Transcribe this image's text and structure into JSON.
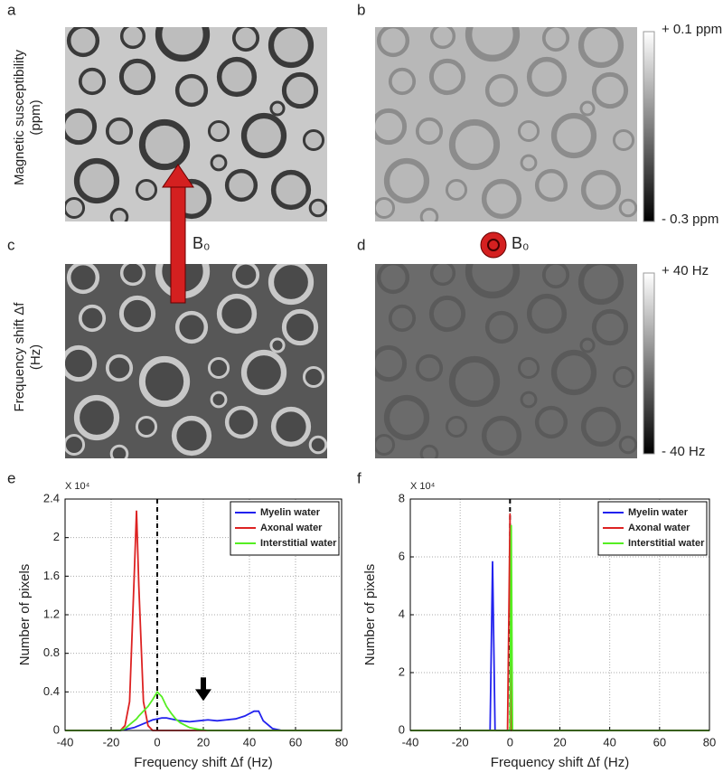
{
  "panel_labels": [
    "a",
    "b",
    "c",
    "d",
    "e",
    "f"
  ],
  "images": {
    "row1_label": [
      "Magnetic susceptibility",
      "(ppm)"
    ],
    "row2_label": [
      "Frequency shift Δf",
      "(Hz)"
    ],
    "field_label": "B₀"
  },
  "colorbars": [
    {
      "max_label": "+ 0.1 ppm",
      "min_label": "- 0.3 ppm"
    },
    {
      "max_label": "+ 40 Hz",
      "min_label": "- 40 Hz"
    }
  ],
  "chart_data": [
    {
      "type": "line",
      "x_label": "Frequency shift Δf (Hz)",
      "y_label": "Number of pixels",
      "y_multiplier": "X 10⁴",
      "x": [
        -40,
        -20,
        -16,
        -14,
        -12,
        -10,
        -9,
        -8,
        -6,
        -4,
        -2,
        0,
        2,
        4,
        6,
        8,
        10,
        14,
        18,
        22,
        26,
        30,
        34,
        38,
        42,
        44,
        46,
        50,
        54,
        60,
        80
      ],
      "xlim": [
        -40,
        80
      ],
      "xticks": [
        -40,
        -20,
        0,
        20,
        40,
        60,
        80
      ],
      "ylim": [
        0,
        2.4
      ],
      "yticks": [
        0,
        0.4,
        0.8,
        1.2,
        1.6,
        2,
        2.4
      ],
      "grid": true,
      "legend": "upper right",
      "reference_line": 0,
      "series": [
        {
          "name": "Myelin water",
          "color": "#2222ee",
          "values": [
            0,
            0,
            0,
            0.01,
            0.02,
            0.03,
            0.04,
            0.05,
            0.07,
            0.09,
            0.11,
            0.12,
            0.13,
            0.13,
            0.12,
            0.11,
            0.1,
            0.09,
            0.1,
            0.11,
            0.1,
            0.11,
            0.12,
            0.15,
            0.2,
            0.2,
            0.1,
            0.02,
            0,
            0,
            0
          ]
        },
        {
          "name": "Axonal water",
          "color": "#dd2222",
          "values": [
            0,
            0,
            0,
            0.05,
            0.3,
            1.6,
            2.28,
            1.5,
            0.3,
            0.05,
            0,
            0,
            0,
            0,
            0,
            0,
            0,
            0,
            0,
            0,
            0,
            0,
            0,
            0,
            0,
            0,
            0,
            0,
            0,
            0,
            0
          ]
        },
        {
          "name": "Interstitial water",
          "color": "#55ee22",
          "values": [
            0,
            0,
            0,
            0.02,
            0.06,
            0.1,
            0.12,
            0.15,
            0.2,
            0.25,
            0.32,
            0.4,
            0.35,
            0.25,
            0.18,
            0.12,
            0.08,
            0.03,
            0.01,
            0,
            0,
            0,
            0,
            0,
            0,
            0,
            0,
            0,
            0,
            0,
            0
          ]
        }
      ]
    },
    {
      "type": "line",
      "x_label": "Frequency shift Δf (Hz)",
      "y_label": "Number of pixels",
      "y_multiplier": "X 10⁴",
      "x": [
        -40,
        -8,
        -7,
        -6,
        -1,
        0,
        0.5,
        1,
        2,
        80
      ],
      "xlim": [
        -40,
        80
      ],
      "xticks": [
        -40,
        -20,
        0,
        20,
        40,
        60,
        80
      ],
      "ylim": [
        0,
        8
      ],
      "yticks": [
        0,
        2,
        4,
        6,
        8
      ],
      "grid": true,
      "legend": "upper right",
      "reference_line": 0,
      "series": [
        {
          "name": "Myelin water",
          "color": "#2222ee",
          "values": [
            0,
            0,
            5.85,
            0,
            0,
            0,
            0,
            0,
            0,
            0
          ]
        },
        {
          "name": "Axonal water",
          "color": "#dd2222",
          "values": [
            0,
            0,
            0,
            0,
            0,
            7.5,
            0,
            0,
            0,
            0
          ]
        },
        {
          "name": "Interstitial water",
          "color": "#55ee22",
          "values": [
            0,
            0,
            0,
            0,
            0,
            0,
            7.1,
            0,
            0,
            0
          ]
        }
      ]
    }
  ]
}
